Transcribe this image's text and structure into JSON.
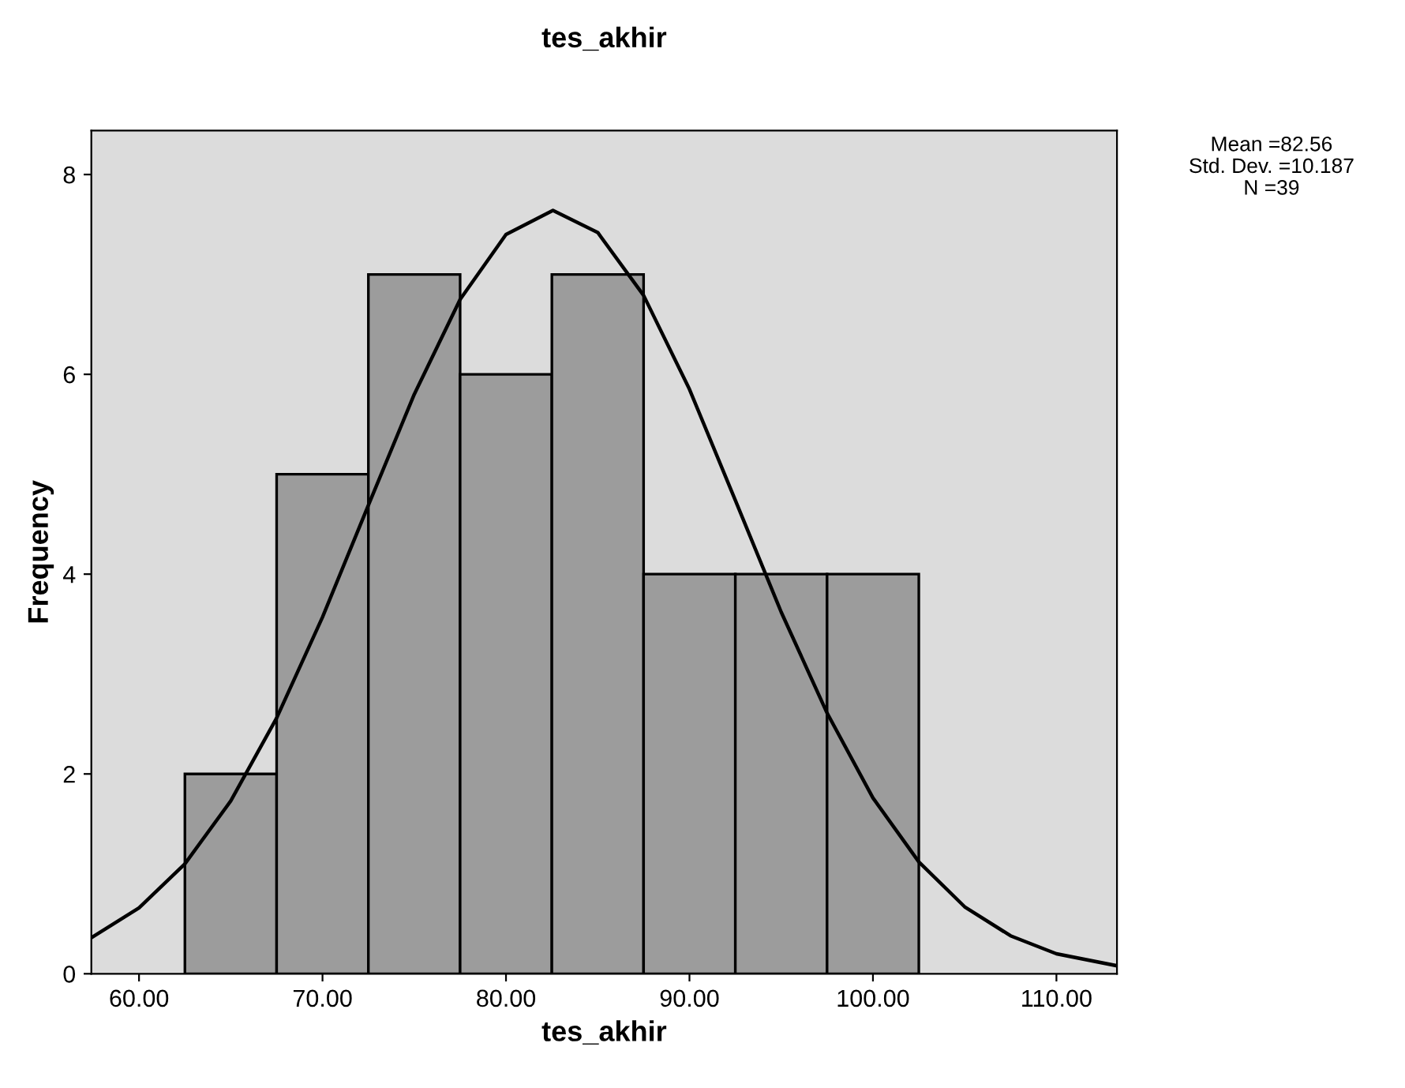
{
  "chart_data": {
    "type": "histogram",
    "title": "tes_akhir",
    "xlabel": "tes_akhir",
    "ylabel": "Frequency",
    "bins": [
      62.5,
      67.5,
      72.5,
      77.5,
      82.5,
      87.5,
      92.5,
      97.5,
      102.5
    ],
    "values": [
      2,
      5,
      7,
      6,
      7,
      4,
      4,
      4
    ],
    "color": "#9c9c9c",
    "series": [
      {
        "type": "line",
        "color": "#000000",
        "x": [
          57.4,
          60,
          62.5,
          65,
          67.5,
          70,
          72.5,
          75,
          77.5,
          80,
          82.56,
          85,
          87.5,
          90,
          92.5,
          95,
          97.5,
          100,
          102.5,
          105,
          107.5,
          110,
          113.3
        ],
        "values": [
          0.36,
          0.66,
          1.1,
          1.73,
          2.56,
          3.57,
          4.69,
          5.8,
          6.75,
          7.4,
          7.64,
          7.42,
          6.79,
          5.85,
          4.74,
          3.62,
          2.61,
          1.76,
          1.12,
          0.67,
          0.38,
          0.2,
          0.08
        ]
      }
    ],
    "xlim": [
      57.4,
      113.3
    ],
    "ylim": [
      0,
      8.44
    ],
    "xticks": [
      {
        "value": 60,
        "label": "60.00"
      },
      {
        "value": 70,
        "label": "70.00"
      },
      {
        "value": 80,
        "label": "80.00"
      },
      {
        "value": 90,
        "label": "90.00"
      },
      {
        "value": 100,
        "label": "100.00"
      },
      {
        "value": 110,
        "label": "110.00"
      }
    ],
    "yticks": [
      0,
      2,
      4,
      6,
      8
    ],
    "grid": false,
    "legend": false,
    "annotations": [
      "Mean =82.56",
      "Std. Dev. =10.187",
      "N =39"
    ]
  }
}
